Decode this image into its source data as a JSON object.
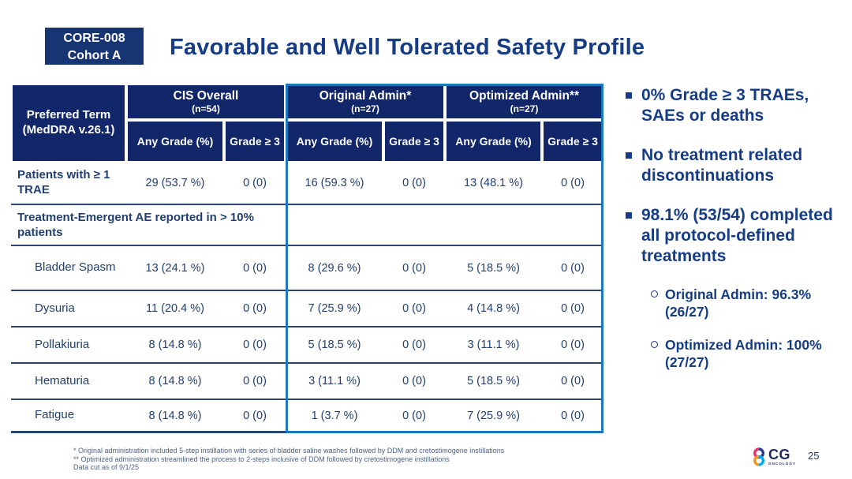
{
  "badge": {
    "line1": "CORE-008",
    "line2": "Cohort A"
  },
  "title": "Favorable and Well Tolerated Safety Profile",
  "table": {
    "corner_header": "Preferred Term (MedDRA v.26.1)",
    "groups": [
      {
        "label": "CIS Overall",
        "n": "(n=54)"
      },
      {
        "label": "Original Admin*",
        "n": "(n=27)"
      },
      {
        "label": "Optimized Admin**",
        "n": "(n=27)"
      }
    ],
    "subcols": [
      "Any Grade (%)",
      "Grade ≥ 3"
    ],
    "rows": [
      {
        "type": "data",
        "label": "Patients with ≥ 1 TRAE",
        "emphasis": true,
        "indent": false,
        "values": [
          "29 (53.7 %)",
          "0 (0)",
          "16 (59.3 %)",
          "0 (0)",
          "13 (48.1 %)",
          "0 (0)"
        ]
      },
      {
        "type": "section",
        "label": "Treatment-Emergent AE reported in > 10% patients"
      },
      {
        "type": "data",
        "label": "Bladder Spasm",
        "emphasis": false,
        "indent": true,
        "values": [
          "13 (24.1 %)",
          "0 (0)",
          "8 (29.6 %)",
          "0 (0)",
          "5 (18.5 %)",
          "0 (0)"
        ]
      },
      {
        "type": "data",
        "label": "Dysuria",
        "emphasis": false,
        "indent": true,
        "values": [
          "11 (20.4 %)",
          "0 (0)",
          "7 (25.9 %)",
          "0 (0)",
          "4 (14.8 %)",
          "0 (0)"
        ]
      },
      {
        "type": "data",
        "label": "Pollakiuria",
        "emphasis": false,
        "indent": true,
        "values": [
          "8 (14.8 %)",
          "0 (0)",
          "5 (18.5 %)",
          "0 (0)",
          "3 (11.1 %)",
          "0 (0)"
        ]
      },
      {
        "type": "data",
        "label": "Hematuria",
        "emphasis": false,
        "indent": true,
        "values": [
          "8 (14.8 %)",
          "0 (0)",
          "3 (11.1 %)",
          "0 (0)",
          "5 (18.5 %)",
          "0 (0)"
        ]
      },
      {
        "type": "data",
        "label": "Fatigue",
        "emphasis": false,
        "indent": true,
        "values": [
          "8 (14.8 %)",
          "0 (0)",
          "1 (3.7 %)",
          "0 (0)",
          "7 (25.9 %)",
          "0 (0)"
        ]
      }
    ]
  },
  "key_points": [
    {
      "text": "0% Grade ≥ 3 TRAEs, SAEs or deaths",
      "sub": []
    },
    {
      "text": "No treatment related discontinuations",
      "sub": []
    },
    {
      "text": "98.1% (53/54) completed all protocol-defined treatments",
      "sub": [
        "Original Admin: 96.3% (26/27)",
        "Optimized Admin: 100% (27/27)"
      ]
    }
  ],
  "footnotes": [
    "* Original administration included 5-step instillation with series of bladder saline washes followed by DDM and cretostimogene instillations",
    "** Optimized administration streamlined the process to 2-steps inclusive of DDM followed by cretostimogene instillations",
    "Data cut as of 9/1/25"
  ],
  "logo": {
    "cg": "CG",
    "oncology": "ONCOLOGY"
  },
  "page_number": "25",
  "colors": {
    "header_navy": "#12276a",
    "badge_navy": "#173572",
    "title_blue": "#153c85",
    "body_text": "#22406f",
    "highlight_blue": "#1b78be",
    "footnote_gray": "#4e6280"
  }
}
